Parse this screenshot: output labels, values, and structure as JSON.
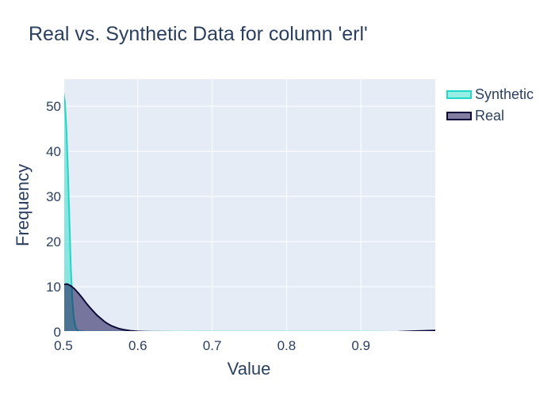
{
  "chart_data": {
    "type": "area",
    "title": "Real vs. Synthetic Data for column 'erl'",
    "xlabel": "Value",
    "ylabel": "Frequency",
    "xlim": [
      0.5,
      1.0
    ],
    "ylim": [
      0,
      56
    ],
    "x_ticks": [
      0.5,
      0.6,
      0.7,
      0.8,
      0.9
    ],
    "x_tick_labels": [
      "0.5",
      "0.6",
      "0.7",
      "0.8",
      "0.9"
    ],
    "y_ticks": [
      0,
      10,
      20,
      30,
      40,
      50
    ],
    "y_tick_labels": [
      "0",
      "10",
      "20",
      "30",
      "40",
      "50"
    ],
    "grid": true,
    "legend_position": "top-right",
    "series": [
      {
        "name": "Synthetic",
        "color": "#1fd8c8",
        "fill": "rgba(64,224,208,0.55)",
        "x": [
          0.5,
          0.502,
          0.504,
          0.506,
          0.508,
          0.51,
          0.512,
          0.514,
          0.516,
          0.518,
          0.52,
          0.53,
          0.6,
          0.7,
          0.8,
          0.9,
          0.935
        ],
        "y": [
          53,
          51,
          45,
          36,
          25,
          14,
          7,
          3,
          1.2,
          0.5,
          0.2,
          0.05,
          0.02,
          0.05,
          0.05,
          0.05,
          0.02
        ]
      },
      {
        "name": "Real",
        "color": "#0d0a3a",
        "fill": "rgba(25,20,85,0.55)",
        "x": [
          0.5,
          0.505,
          0.51,
          0.515,
          0.52,
          0.525,
          0.53,
          0.535,
          0.54,
          0.545,
          0.55,
          0.555,
          0.56,
          0.565,
          0.57,
          0.575,
          0.58,
          0.59,
          0.6,
          0.61,
          0.62,
          0.65,
          0.7,
          0.8,
          0.9,
          0.95,
          0.97,
          1.0
        ],
        "y": [
          10.5,
          10.6,
          10.2,
          9.5,
          8.6,
          7.6,
          6.5,
          5.5,
          4.6,
          3.7,
          3.0,
          2.3,
          1.75,
          1.3,
          1.0,
          0.7,
          0.5,
          0.25,
          0.1,
          0.05,
          0.02,
          0.01,
          0.01,
          0.01,
          0.01,
          0.03,
          0.15,
          0.3
        ]
      }
    ]
  }
}
